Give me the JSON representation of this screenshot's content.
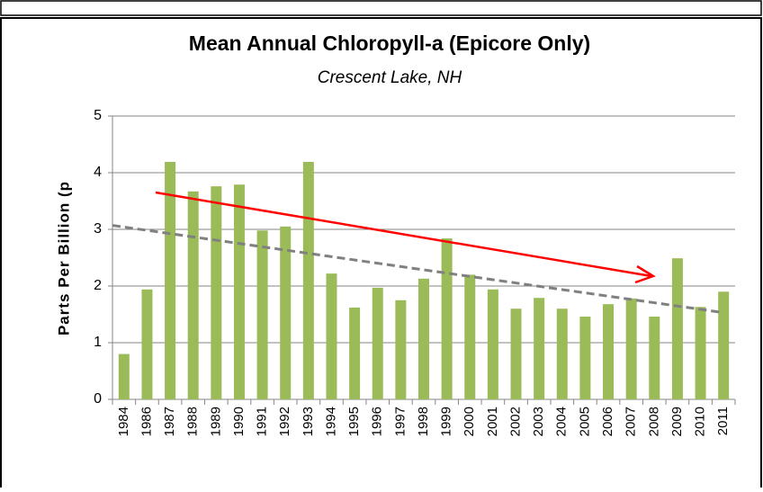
{
  "chart_data": {
    "type": "bar",
    "title": "Mean Annual Chloropyll-a (Epicore Only)",
    "subtitle": "Crescent Lake, NH",
    "y_label": "Parts Per Billion (p",
    "categories": [
      "1984",
      "1986",
      "1987",
      "1988",
      "1989",
      "1990",
      "1991",
      "1992",
      "1993",
      "1994",
      "1995",
      "1996",
      "1997",
      "1998",
      "1999",
      "2000",
      "2001",
      "2002",
      "2003",
      "2004",
      "2005",
      "2006",
      "2007",
      "2008",
      "2009",
      "2010",
      "2011"
    ],
    "values": [
      0.8,
      1.94,
      4.19,
      3.67,
      3.76,
      3.79,
      2.98,
      3.05,
      4.19,
      2.22,
      1.62,
      1.97,
      1.75,
      2.13,
      2.84,
      2.2,
      1.94,
      1.6,
      1.79,
      1.6,
      1.46,
      1.68,
      1.78,
      1.46,
      2.49,
      1.63,
      1.9
    ],
    "color": "#9bbb59",
    "trendline": {
      "values": [
        3.07,
        1.54
      ],
      "color": "#808080"
    },
    "ylim": [
      0,
      5
    ],
    "yticks": [
      0,
      1,
      2,
      3,
      4,
      5
    ],
    "grid": true
  }
}
